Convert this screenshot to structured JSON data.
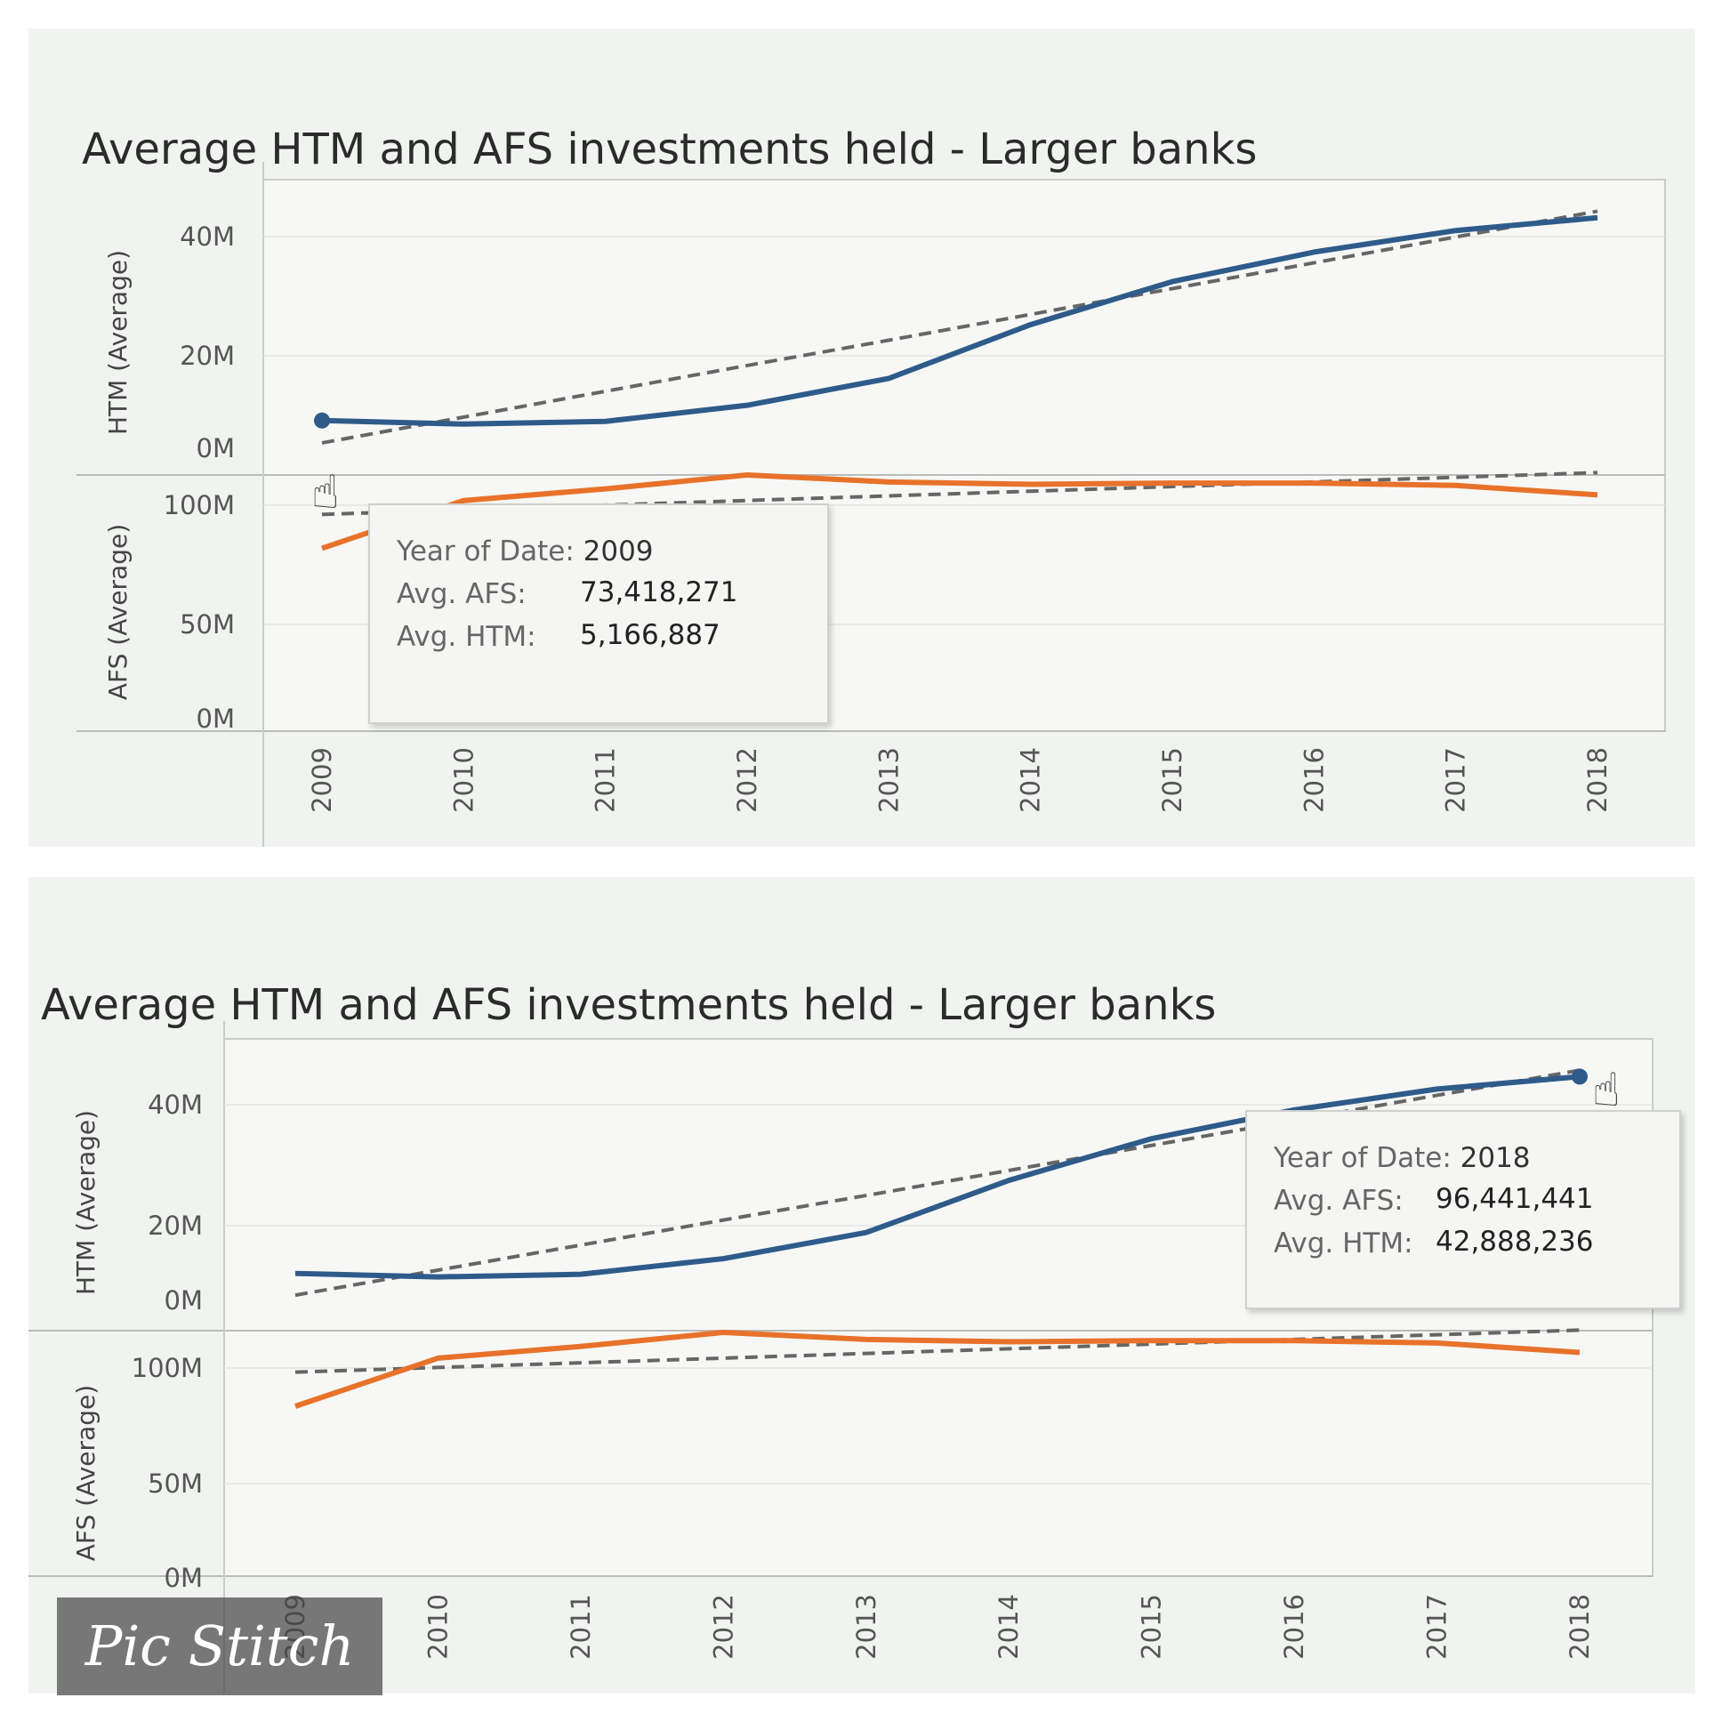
{
  "chart_data": [
    {
      "type": "line",
      "title": "Average HTM and AFS investments held - Larger banks",
      "x": [
        "2009",
        "2010",
        "2011",
        "2012",
        "2013",
        "2014",
        "2015",
        "2016",
        "2017",
        "2018"
      ],
      "panes": [
        {
          "ylabel": "HTM (Average)",
          "yticks": [
            "40M",
            "20M",
            "0M"
          ],
          "ylim": [
            0,
            45000000
          ],
          "series": [
            {
              "values": [
                5166887,
                4500000,
                5000000,
                8000000,
                13000000,
                23000000,
                31000000,
                36500000,
                40500000,
                42888236
              ],
              "color": "#2e5b8a"
            }
          ],
          "trend": [
            1000000,
            5800000,
            10600000,
            15400000,
            20100000,
            24900000,
            29700000,
            34500000,
            39300000,
            44100000
          ]
        },
        {
          "ylabel": "AFS (Average)",
          "yticks": [
            "100M",
            "50M",
            "0M"
          ],
          "ylim": [
            0,
            105000000
          ],
          "series": [
            {
              "values": [
                73418271,
                94000000,
                99000000,
                105000000,
                102000000,
                101000000,
                101500000,
                101500000,
                100500000,
                96441441
              ],
              "color": "#e8722a"
            }
          ],
          "trend": [
            88000000,
            90000000,
            92000000,
            94000000,
            96000000,
            98000000,
            100000000,
            102000000,
            104000000,
            106000000
          ]
        }
      ],
      "tooltip": {
        "year_label": "Year of Date:",
        "year": "2009",
        "afs_label": "Avg. AFS:",
        "afs": "73,418,271",
        "htm_label": "Avg. HTM:",
        "htm": "5,166,887"
      },
      "grid": true
    },
    {
      "type": "line",
      "title": "Average HTM and AFS investments held - Larger banks",
      "x": [
        "2009",
        "2010",
        "2011",
        "2012",
        "2013",
        "2014",
        "2015",
        "2016",
        "2017",
        "2018"
      ],
      "panes": [
        {
          "ylabel": "HTM (Average)",
          "yticks": [
            "40M",
            "20M",
            "0M"
          ],
          "ylim": [
            0,
            45000000
          ],
          "series": [
            {
              "values": [
                5166887,
                4500000,
                5000000,
                8000000,
                13000000,
                23000000,
                31000000,
                36500000,
                40500000,
                42888236
              ],
              "color": "#2e5b8a"
            }
          ],
          "trend": [
            1000000,
            5800000,
            10600000,
            15400000,
            20100000,
            24900000,
            29700000,
            34500000,
            39300000,
            44100000
          ]
        },
        {
          "ylabel": "AFS (Average)",
          "yticks": [
            "100M",
            "50M",
            "0M"
          ],
          "ylim": [
            0,
            105000000
          ],
          "series": [
            {
              "values": [
                73418271,
                94000000,
                99000000,
                105000000,
                102000000,
                101000000,
                101500000,
                101500000,
                100500000,
                96441441
              ],
              "color": "#e8722a"
            }
          ],
          "trend": [
            88000000,
            90000000,
            92000000,
            94000000,
            96000000,
            98000000,
            100000000,
            102000000,
            104000000,
            106000000
          ]
        }
      ],
      "tooltip": {
        "year_label": "Year of Date:",
        "year": "2018",
        "afs_label": "Avg. AFS:",
        "afs": "96,441,441",
        "htm_label": "Avg. HTM:",
        "htm": "42,888,236"
      },
      "grid": true
    }
  ],
  "watermark": "Pic Stitch",
  "icons": {
    "cursor": "hand-pointer-icon"
  }
}
